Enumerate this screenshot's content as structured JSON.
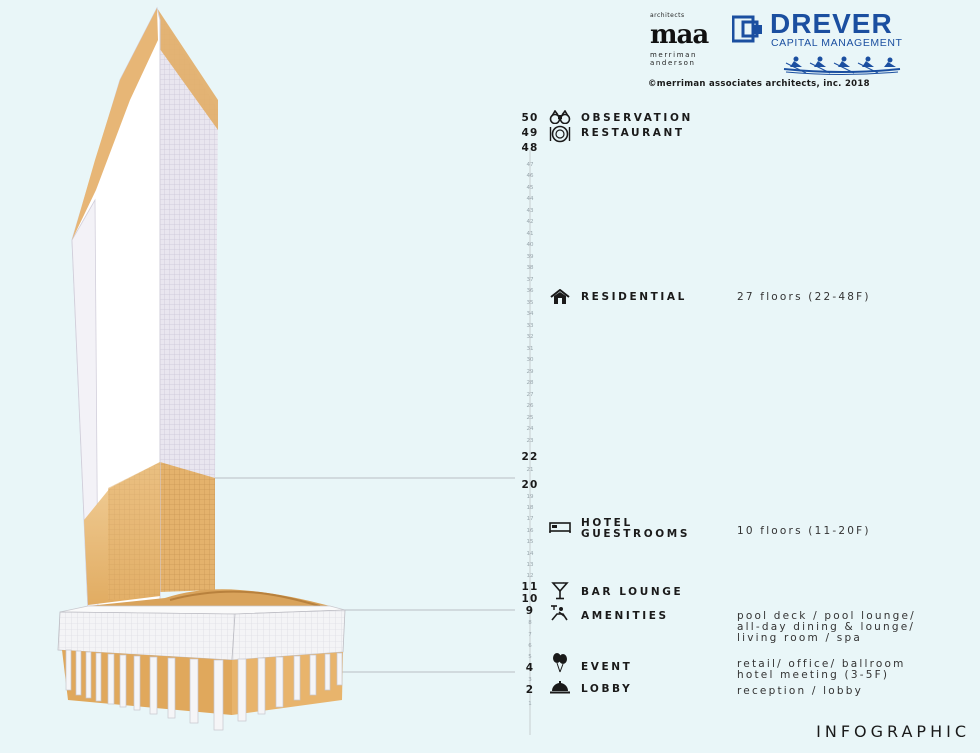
{
  "logos": {
    "maa_small": "architects",
    "maa_mark": "maa",
    "maa_name": "merriman\nanderson",
    "copyright": "©merriman associates architects, inc. 2018",
    "drever_name": "DREVER",
    "drever_sub": "CAPITAL MANAGEMENT"
  },
  "floor_numbers": {
    "major": [
      "50",
      "49",
      "48",
      "22",
      "20",
      "11",
      "10",
      "9",
      "4",
      "2"
    ],
    "minor": [
      "47",
      "46",
      "45",
      "44",
      "43",
      "42",
      "41",
      "40",
      "39",
      "38",
      "37",
      "36",
      "35",
      "34",
      "33",
      "32",
      "31",
      "30",
      "29",
      "28",
      "27",
      "26",
      "25",
      "24",
      "23",
      "21",
      "19",
      "18",
      "17",
      "16",
      "15",
      "14",
      "13",
      "12",
      "8",
      "7",
      "6",
      "5",
      "3",
      "1"
    ]
  },
  "floors": [
    {
      "id": "observation",
      "label": "OBSERVATION",
      "icon": "binoculars-icon",
      "desc": ""
    },
    {
      "id": "restaurant",
      "label": "RESTAURANT",
      "icon": "dining-icon",
      "desc": ""
    },
    {
      "id": "residential",
      "label": "RESIDENTIAL",
      "icon": "house-icon",
      "desc": "27 floors (22-48F)"
    },
    {
      "id": "hotel",
      "label": "HOTEL\nGUESTROOMS",
      "icon": "bed-icon",
      "desc": "10 floors (11-20F)"
    },
    {
      "id": "bar",
      "label": "BAR LOUNGE",
      "icon": "cocktail-icon",
      "desc": ""
    },
    {
      "id": "amenities",
      "label": "AMENITIES",
      "icon": "lounge-chair-icon",
      "desc": "pool deck / pool lounge/\nall-day dining & lounge/\nliving room / spa"
    },
    {
      "id": "event",
      "label": "EVENT",
      "icon": "balloons-icon",
      "desc": "retail/ office/ ballroom\nhotel meeting (3-5F)"
    },
    {
      "id": "lobby",
      "label": "LOBBY",
      "icon": "service-bell-icon",
      "desc": "reception / lobby"
    }
  ],
  "footer": {
    "infographic": "INFOGRAPHIC"
  },
  "colors": {
    "background": "#e9f6f8",
    "tower_white": "#ffffff",
    "tower_gold": "#e6b873",
    "tower_grid": "#c9c4d6",
    "drever_blue": "#1b4fa0"
  }
}
